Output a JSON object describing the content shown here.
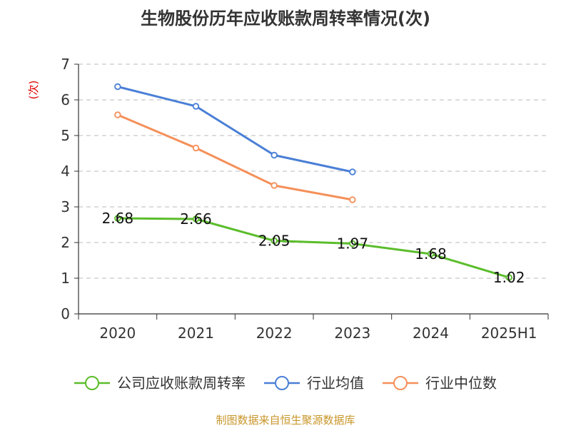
{
  "chart_data": {
    "type": "line",
    "title": "生物股份历年应收账款周转率情况(次)",
    "ylabel": "(次)",
    "xlabel": "",
    "categories": [
      "2020",
      "2021",
      "2022",
      "2023",
      "2024",
      "2025H1"
    ],
    "ylim": [
      0,
      7
    ],
    "yticks": [
      0,
      1,
      2,
      3,
      4,
      5,
      6,
      7
    ],
    "grid": true,
    "legend_position": "bottom",
    "series": [
      {
        "name": "公司应收账款周转率",
        "color": "#5bbd2b",
        "values": [
          2.68,
          2.66,
          2.05,
          1.97,
          1.68,
          1.02
        ],
        "labels": [
          "2.68",
          "2.66",
          "2.05",
          "1.97",
          "1.68",
          "1.02"
        ],
        "show_labels": true
      },
      {
        "name": "行业均值",
        "color": "#4a7fd6",
        "values": [
          6.37,
          5.82,
          4.45,
          3.98,
          null,
          null
        ],
        "show_labels": false
      },
      {
        "name": "行业中位数",
        "color": "#f5905a",
        "values": [
          5.58,
          4.65,
          3.6,
          3.2,
          null,
          null
        ],
        "show_labels": false
      }
    ]
  },
  "source": "制图数据来自恒生聚源数据库"
}
